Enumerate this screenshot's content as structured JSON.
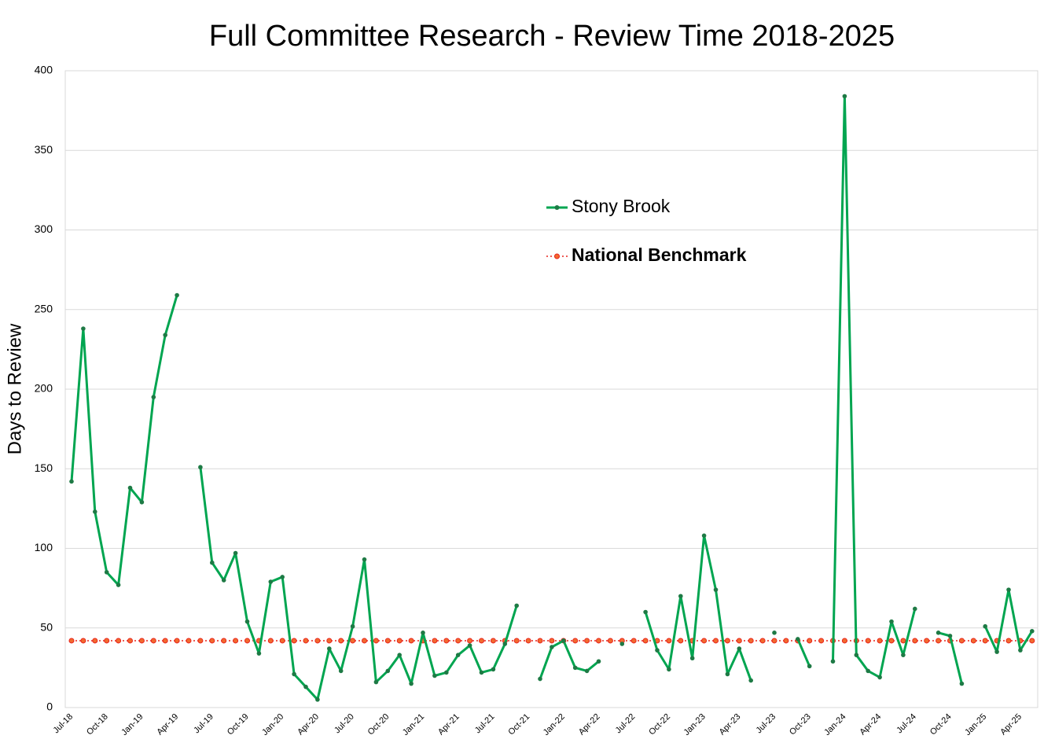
{
  "chart_data": {
    "type": "line",
    "title": "Full Committee Research - Review Time 2018-2025",
    "y_label": "Days to Review",
    "categories": [
      "Jul-18",
      null,
      null,
      "Oct-18",
      null,
      null,
      "Jan-19",
      null,
      null,
      "Apr-19",
      null,
      null,
      "Jul-19",
      null,
      null,
      "Oct-19",
      null,
      null,
      "Jan-20",
      null,
      null,
      "Apr-20",
      null,
      null,
      "Jul-20",
      null,
      null,
      "Oct-20",
      null,
      null,
      "Jan-21",
      null,
      null,
      "Apr-21",
      null,
      null,
      "Jul-21",
      null,
      null,
      "Oct-21",
      null,
      null,
      "Jan-22",
      null,
      null,
      "Apr-22",
      null,
      null,
      "Jul-22",
      null,
      null,
      "Oct-22",
      null,
      null,
      "Jan-23",
      null,
      null,
      "Apr-23",
      null,
      null,
      "Jul-23",
      null,
      null,
      "Oct-23",
      null,
      null,
      "Jan-24",
      null,
      null,
      "Apr-24",
      null,
      null,
      "Jul-24",
      null,
      null,
      "Oct-24",
      null,
      null,
      "Jan-25",
      null,
      null,
      "Apr-25",
      null
    ],
    "series": [
      {
        "name": "Stony Brook",
        "color": "#00a550",
        "marker_color": "#1e7a45",
        "bold": false,
        "values": [
          142,
          238,
          123,
          85,
          77,
          138,
          129,
          195,
          234,
          259,
          null,
          151,
          91,
          80,
          97,
          54,
          34,
          79,
          82,
          21,
          13,
          5,
          37,
          23,
          51,
          93,
          16,
          23,
          33,
          15,
          47,
          20,
          22,
          33,
          39,
          22,
          24,
          40,
          64,
          null,
          18,
          38,
          42,
          25,
          23,
          29,
          null,
          40,
          null,
          60,
          36,
          24,
          70,
          31,
          108,
          74,
          21,
          37,
          17,
          null,
          47,
          null,
          43,
          26,
          null,
          29,
          384,
          33,
          23,
          19,
          54,
          33,
          62,
          null,
          47,
          45,
          15,
          null,
          51,
          35,
          74,
          36,
          48
        ]
      },
      {
        "name": "National Benchmark",
        "color": "#e8231d",
        "marker_color": "#f26a2e",
        "bold": true,
        "dotted": true,
        "values": [
          42,
          42,
          42,
          42,
          42,
          42,
          42,
          42,
          42,
          42,
          42,
          42,
          42,
          42,
          42,
          42,
          42,
          42,
          42,
          42,
          42,
          42,
          42,
          42,
          42,
          42,
          42,
          42,
          42,
          42,
          42,
          42,
          42,
          42,
          42,
          42,
          42,
          42,
          42,
          42,
          42,
          42,
          42,
          42,
          42,
          42,
          42,
          42,
          42,
          42,
          42,
          42,
          42,
          42,
          42,
          42,
          42,
          42,
          42,
          42,
          42,
          42,
          42,
          42,
          42,
          42,
          42,
          42,
          42,
          42,
          42,
          42,
          42,
          42,
          42,
          42,
          42,
          42,
          42,
          42,
          42,
          42,
          42
        ]
      }
    ],
    "ylim": [
      0,
      400
    ],
    "yticks": [
      0,
      50,
      100,
      150,
      200,
      250,
      300,
      350,
      400
    ],
    "grid": true
  }
}
